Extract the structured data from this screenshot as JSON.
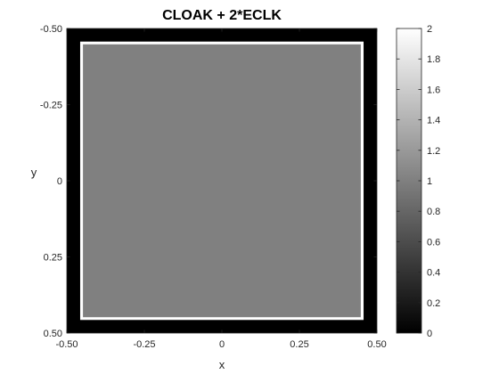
{
  "chart_data": {
    "type": "heatmap",
    "title": "CLOAK + 2*ECLK",
    "xlabel": "x",
    "ylabel": "y",
    "xlim": [
      -0.5,
      0.5
    ],
    "ylim": [
      -0.5,
      0.5
    ],
    "y_direction": "reverse",
    "x_ticks": [
      {
        "value": -0.5,
        "label": "-0.50"
      },
      {
        "value": -0.25,
        "label": "-0.25"
      },
      {
        "value": 0,
        "label": "0"
      },
      {
        "value": 0.25,
        "label": "0.25"
      },
      {
        "value": 0.5,
        "label": "0.50"
      }
    ],
    "y_ticks": [
      {
        "value": -0.5,
        "label": "-0.50"
      },
      {
        "value": -0.25,
        "label": "-0.25"
      },
      {
        "value": 0,
        "label": "0"
      },
      {
        "value": 0.25,
        "label": "0.25"
      },
      {
        "value": 0.5,
        "label": "0.50"
      }
    ],
    "regions": [
      {
        "name": "background",
        "x": [
          -0.5,
          0.5
        ],
        "y": [
          -0.5,
          0.5
        ],
        "value": 0
      },
      {
        "name": "outline",
        "x": [
          -0.457,
          0.457
        ],
        "y": [
          -0.457,
          0.457
        ],
        "value": 2
      },
      {
        "name": "interior",
        "x": [
          -0.448,
          0.448
        ],
        "y": [
          -0.448,
          0.448
        ],
        "value": 1
      }
    ],
    "colorbar": {
      "colormap": "gray",
      "range": [
        0,
        2
      ],
      "ticks": [
        {
          "value": 0,
          "label": "0"
        },
        {
          "value": 0.2,
          "label": "0.2"
        },
        {
          "value": 0.4,
          "label": "0.4"
        },
        {
          "value": 0.6,
          "label": "0.6"
        },
        {
          "value": 0.8,
          "label": "0.8"
        },
        {
          "value": 1,
          "label": "1"
        },
        {
          "value": 1.2,
          "label": "1.2"
        },
        {
          "value": 1.4,
          "label": "1.4"
        },
        {
          "value": 1.6,
          "label": "1.6"
        },
        {
          "value": 1.8,
          "label": "1.8"
        },
        {
          "value": 2,
          "label": "2"
        }
      ]
    },
    "grid": false
  }
}
